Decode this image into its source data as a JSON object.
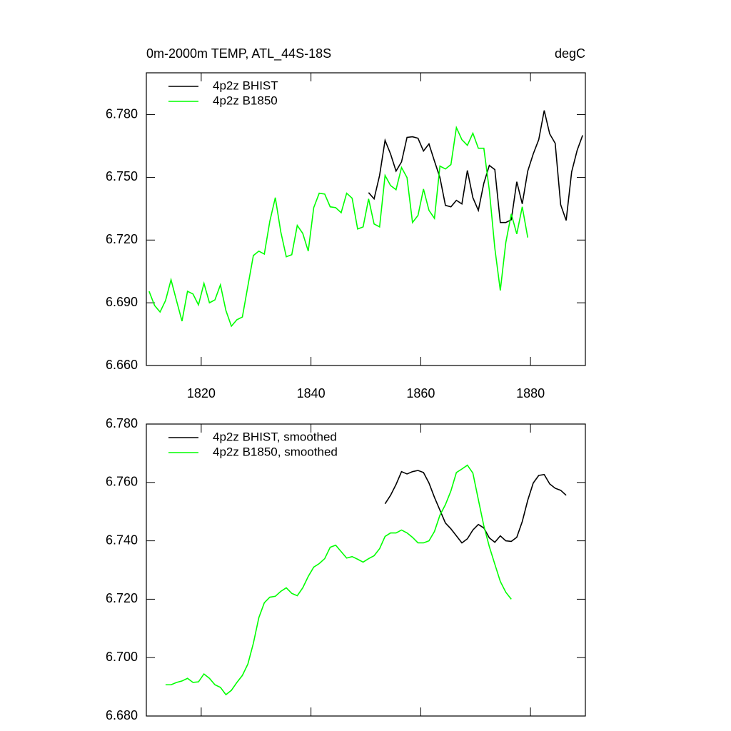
{
  "chart_data": [
    {
      "type": "line",
      "title": "0m-2000m TEMP, ATL_44S-18S",
      "units": "degC",
      "xlim": [
        1810,
        1890
      ],
      "xticks": [
        1820,
        1840,
        1860,
        1880
      ],
      "ylim": [
        6.66,
        6.8
      ],
      "yticks": [
        {
          "value": 6.66,
          "label": "6.660"
        },
        {
          "value": 6.69,
          "label": "6.690"
        },
        {
          "value": 6.72,
          "label": "6.720"
        },
        {
          "value": 6.75,
          "label": "6.750"
        },
        {
          "value": 6.78,
          "label": "6.780"
        }
      ],
      "series": [
        {
          "name": "4p2z BHIST",
          "color": "#000000",
          "x": [
            1850.5,
            1851.5,
            1852.5,
            1853.5,
            1854.5,
            1855.5,
            1856.5,
            1857.5,
            1858.5,
            1859.5,
            1860.5,
            1861.5,
            1862.5,
            1863.5,
            1864.5,
            1865.5,
            1866.5,
            1867.5,
            1868.5,
            1869.5,
            1870.5,
            1871.5,
            1872.5,
            1873.5,
            1874.5,
            1875.5,
            1876.5,
            1877.5,
            1878.5,
            1879.5,
            1880.5,
            1881.5,
            1882.5,
            1883.5,
            1884.5,
            1885.5,
            1886.5,
            1887.5,
            1888.5,
            1889.5
          ],
          "values": [
            6.7427,
            6.7397,
            6.7509,
            6.7677,
            6.7612,
            6.753,
            6.7574,
            6.7691,
            6.7694,
            6.7687,
            6.7626,
            6.766,
            6.7578,
            6.7499,
            6.7366,
            6.7359,
            6.739,
            6.7373,
            6.7533,
            6.7403,
            6.7342,
            6.7472,
            6.7557,
            6.7537,
            6.7284,
            6.7284,
            6.7297,
            6.7479,
            6.7373,
            6.753,
            6.7612,
            6.768,
            6.782,
            6.7708,
            6.7663,
            6.7369,
            6.7294,
            6.7526,
            6.7629,
            6.7701
          ]
        },
        {
          "name": "4p2z B1850",
          "color": "#00ff00",
          "x": [
            1810.5,
            1811.5,
            1812.5,
            1813.5,
            1814.5,
            1815.5,
            1816.5,
            1817.5,
            1818.5,
            1819.5,
            1820.5,
            1821.5,
            1822.5,
            1823.5,
            1824.5,
            1825.5,
            1826.5,
            1827.5,
            1828.5,
            1829.5,
            1830.5,
            1831.5,
            1832.5,
            1833.5,
            1834.5,
            1835.5,
            1836.5,
            1837.5,
            1838.5,
            1839.5,
            1840.5,
            1841.5,
            1842.5,
            1843.5,
            1844.5,
            1845.5,
            1846.5,
            1847.5,
            1848.5,
            1849.5,
            1850.5,
            1851.5,
            1852.5,
            1853.5,
            1854.5,
            1855.5,
            1856.5,
            1857.5,
            1858.5,
            1859.5,
            1860.5,
            1861.5,
            1862.5,
            1863.5,
            1864.5,
            1865.5,
            1866.5,
            1867.5,
            1868.5,
            1869.5,
            1870.5,
            1871.5,
            1872.5,
            1873.5,
            1874.5,
            1875.5,
            1876.5,
            1877.5,
            1878.5,
            1879.5
          ],
          "values": [
            6.6955,
            6.6887,
            6.6856,
            6.6911,
            6.701,
            6.691,
            6.6812,
            6.6955,
            6.6942,
            6.689,
            6.6993,
            6.69,
            6.6914,
            6.6986,
            6.6863,
            6.6788,
            6.6819,
            6.6832,
            6.698,
            6.7126,
            6.7147,
            6.7133,
            6.729,
            6.7403,
            6.7239,
            6.712,
            6.713,
            6.727,
            6.7232,
            6.7147,
            6.7355,
            6.7424,
            6.742,
            6.7359,
            6.7355,
            6.7331,
            6.7424,
            6.74,
            6.7253,
            6.7263,
            6.7397,
            6.7277,
            6.7263,
            6.7509,
            6.7461,
            6.7441,
            6.7547,
            6.7499,
            6.7284,
            6.7318,
            6.7444,
            6.7342,
            6.7304,
            6.7554,
            6.754,
            6.7561,
            6.7738,
            6.768,
            6.7653,
            6.7711,
            6.7639,
            6.7639,
            6.7438,
            6.7161,
            6.6959,
            6.7188,
            6.7325,
            6.7229,
            6.7359,
            6.7212
          ]
        }
      ]
    },
    {
      "type": "line",
      "xlim": [
        1810,
        1890
      ],
      "xticks": [
        1820,
        1840,
        1860,
        1880
      ],
      "ylim": [
        6.68,
        6.78
      ],
      "yticks": [
        {
          "value": 6.68,
          "label": "6.680"
        },
        {
          "value": 6.7,
          "label": "6.700"
        },
        {
          "value": 6.72,
          "label": "6.720"
        },
        {
          "value": 6.74,
          "label": "6.740"
        },
        {
          "value": 6.76,
          "label": "6.760"
        },
        {
          "value": 6.78,
          "label": "6.780"
        }
      ],
      "series": [
        {
          "name": "4p2z BHIST, smoothed",
          "color": "#000000",
          "x": [
            1853.5,
            1854.5,
            1855.5,
            1856.5,
            1857.5,
            1858.5,
            1859.5,
            1860.5,
            1861.5,
            1862.5,
            1863.5,
            1864.5,
            1865.5,
            1866.5,
            1867.5,
            1868.5,
            1869.5,
            1870.5,
            1871.5,
            1872.5,
            1873.5,
            1874.5,
            1875.5,
            1876.5,
            1877.5,
            1878.5,
            1879.5,
            1880.5,
            1881.5,
            1882.5,
            1883.5,
            1884.5,
            1885.5,
            1886.5
          ],
          "values": [
            6.7527,
            6.7556,
            6.7593,
            6.7637,
            6.7629,
            6.7637,
            6.7641,
            6.7634,
            6.7598,
            6.7549,
            6.7505,
            6.7461,
            6.7441,
            6.7417,
            6.7393,
            6.7407,
            6.7437,
            6.7456,
            6.7444,
            6.741,
            6.7395,
            6.7417,
            6.74,
            6.7398,
            6.7412,
            6.7466,
            6.7539,
            6.7598,
            6.7624,
            6.7627,
            6.7595,
            6.758,
            6.7573,
            6.7556
          ]
        },
        {
          "name": "4p2z B1850, smoothed",
          "color": "#00ff00",
          "x": [
            1813.5,
            1814.5,
            1815.5,
            1816.5,
            1817.5,
            1818.5,
            1819.5,
            1820.5,
            1821.5,
            1822.5,
            1823.5,
            1824.5,
            1825.5,
            1826.5,
            1827.5,
            1828.5,
            1829.5,
            1830.5,
            1831.5,
            1832.5,
            1833.5,
            1834.5,
            1835.5,
            1836.5,
            1837.5,
            1838.5,
            1839.5,
            1840.5,
            1841.5,
            1842.5,
            1843.5,
            1844.5,
            1845.5,
            1846.5,
            1847.5,
            1848.5,
            1849.5,
            1850.5,
            1851.5,
            1852.5,
            1853.5,
            1854.5,
            1855.5,
            1856.5,
            1857.5,
            1858.5,
            1859.5,
            1860.5,
            1861.5,
            1862.5,
            1863.5,
            1864.5,
            1865.5,
            1866.5,
            1867.5,
            1868.5,
            1869.5,
            1870.5,
            1871.5,
            1872.5,
            1873.5,
            1874.5,
            1875.5,
            1876.5
          ],
          "values": [
            6.6907,
            6.6907,
            6.6915,
            6.692,
            6.6929,
            6.6915,
            6.6917,
            6.6944,
            6.6929,
            6.6907,
            6.6898,
            6.6873,
            6.6888,
            6.6915,
            6.6939,
            6.6978,
            6.7049,
            6.7137,
            6.7188,
            6.7207,
            6.721,
            6.7227,
            6.7239,
            6.722,
            6.7212,
            6.7239,
            6.7278,
            6.731,
            6.7322,
            6.7339,
            6.7378,
            6.7385,
            6.7363,
            6.7341,
            6.7346,
            6.7337,
            6.7327,
            6.7339,
            6.7349,
            6.7373,
            6.7415,
            6.7427,
            6.7427,
            6.7437,
            6.7427,
            6.7412,
            6.7393,
            6.7393,
            6.74,
            6.7432,
            6.7488,
            6.7524,
            6.7571,
            6.7634,
            6.7646,
            6.7659,
            6.7632,
            6.7541,
            6.7451,
            6.738,
            6.732,
            6.7261,
            6.7224,
            6.72
          ]
        }
      ]
    }
  ]
}
